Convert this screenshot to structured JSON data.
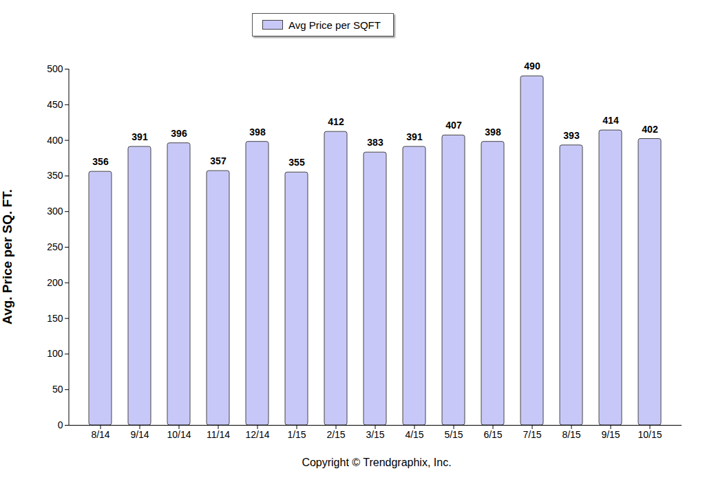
{
  "chart_data": {
    "type": "bar",
    "categories": [
      "8/14",
      "9/14",
      "10/14",
      "11/14",
      "12/14",
      "1/15",
      "2/15",
      "3/15",
      "4/15",
      "5/15",
      "6/15",
      "7/15",
      "8/15",
      "9/15",
      "10/15"
    ],
    "series": [
      {
        "name": "Avg Price per SQFT",
        "color": "#c8c8f8",
        "values": [
          356,
          391,
          396,
          357,
          398,
          355,
          412,
          383,
          391,
          407,
          398,
          490,
          393,
          414,
          402
        ]
      }
    ],
    "y_label": "Avg. Price per SQ. FT.",
    "caption": "Copyright © Trendgraphix, Inc.",
    "ylim": [
      0,
      500
    ],
    "yticks": [
      0,
      50,
      100,
      150,
      200,
      250,
      300,
      350,
      400,
      450,
      500
    ],
    "grid": false,
    "legend": "top",
    "data_labels": true
  }
}
